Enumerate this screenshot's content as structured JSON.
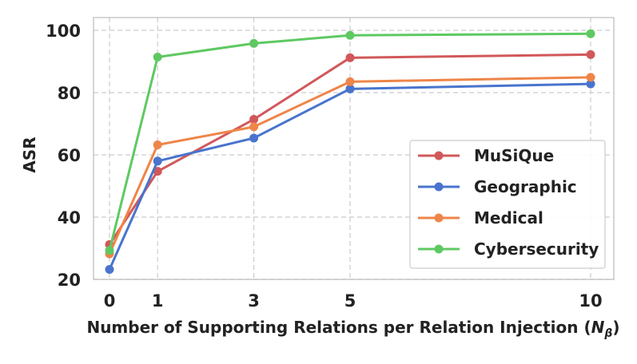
{
  "chart_data": {
    "type": "line",
    "title": "",
    "xlabel": "Number of Supporting Relations per Relation Injection (",
    "xlabel_symbol": "N",
    "xlabel_subscript": "β",
    "xlabel_close": ")",
    "ylabel": "ASR",
    "x": [
      0,
      1,
      3,
      5,
      10
    ],
    "xticks": [
      "0",
      "1",
      "3",
      "5",
      "10"
    ],
    "yticks": [
      "20",
      "40",
      "60",
      "80",
      "100"
    ],
    "ylim": [
      20,
      100
    ],
    "grid": true,
    "legend_position": "lower-right",
    "series": [
      {
        "name": "MuSiQue",
        "color": "#d1585a",
        "values": [
          31.2,
          54.7,
          71.4,
          91.2,
          92.2
        ]
      },
      {
        "name": "Geographic",
        "color": "#4874cd",
        "values": [
          23.2,
          58.0,
          65.4,
          81.2,
          82.8
        ]
      },
      {
        "name": "Medical",
        "color": "#ee8549",
        "values": [
          28.2,
          63.2,
          69.0,
          83.5,
          84.9
        ]
      },
      {
        "name": "Cybersecurity",
        "color": "#5ec962",
        "values": [
          29.3,
          91.4,
          95.8,
          98.4,
          98.9
        ]
      }
    ]
  }
}
